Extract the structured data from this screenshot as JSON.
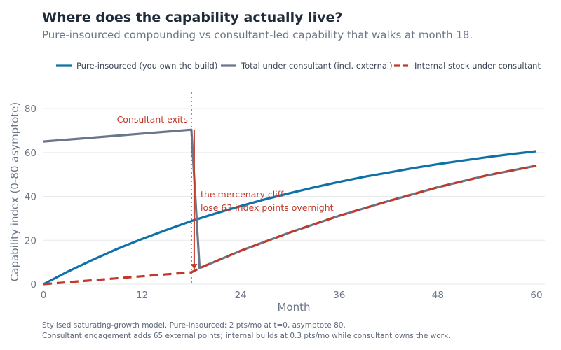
{
  "header": {
    "title": "Where does the capability actually live?",
    "subtitle": "Pure-insourced compounding vs consultant-led capability that walks at month 18."
  },
  "footnotes": [
    "Stylised saturating-growth model. Pure-insourced: 2 pts/mo at t=0, asymptote 80.",
    "Consultant engagement adds 65 external points; internal builds at 0.3 pts/mo while consultant owns the work."
  ],
  "chart_data": {
    "type": "line",
    "xlabel": "Month",
    "ylabel": "Capability index (0-80 asymptote)",
    "xlim": [
      0,
      60
    ],
    "ylim": [
      0,
      88
    ],
    "xticks": [
      0,
      12,
      24,
      36,
      48,
      60
    ],
    "yticks": [
      0,
      20,
      40,
      60,
      80
    ],
    "grid": true,
    "legend_position": "top",
    "series": [
      {
        "name": "Pure-insourced (you own the build)",
        "color": "#0e72a8",
        "dash": "solid",
        "x": [
          0,
          3,
          6,
          9,
          12,
          15,
          18,
          21,
          24,
          27,
          30,
          33,
          36,
          39,
          42,
          45,
          48,
          51,
          54,
          57,
          60
        ],
        "y": [
          0,
          5.8,
          11.1,
          16.1,
          20.6,
          24.8,
          28.8,
          32.3,
          35.6,
          38.7,
          41.5,
          44.2,
          46.6,
          48.9,
          50.9,
          52.9,
          54.7,
          56.3,
          57.9,
          59.3,
          60.6
        ]
      },
      {
        "name": "Total under consultant (incl. external)",
        "color": "#6a7689",
        "dash": "solid",
        "x": [
          0,
          6,
          12,
          18,
          19,
          24,
          30,
          36,
          42,
          48,
          54,
          60
        ],
        "y": [
          65,
          66.8,
          68.6,
          70.4,
          7.3,
          15.2,
          23.6,
          31.2,
          37.9,
          44.2,
          49.6,
          54.0
        ]
      },
      {
        "name": "Internal stock under consultant",
        "color": "#c0392b",
        "dash": "dashed",
        "x": [
          0,
          6,
          12,
          18,
          19,
          24,
          30,
          36,
          42,
          48,
          54,
          60
        ],
        "y": [
          0,
          1.8,
          3.6,
          5.4,
          7.3,
          15.2,
          23.6,
          31.2,
          37.9,
          44.2,
          49.6,
          54.0
        ]
      }
    ],
    "annotations": {
      "exit_month": 18,
      "exit_label": "Consultant exits",
      "cliff_label_1": "the mercenary cliff:",
      "cliff_label_2": "lose 63 index points overnight",
      "arrow_from_y": 70.4,
      "arrow_to_y": 5.4,
      "color": "#c0392b"
    }
  }
}
